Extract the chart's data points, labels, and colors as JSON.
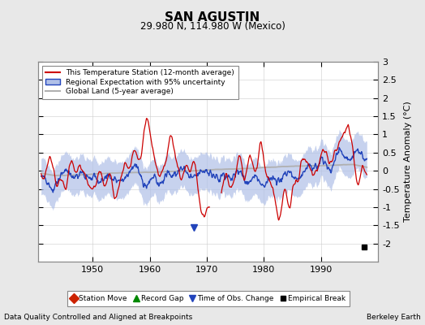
{
  "title": "SAN AGUSTIN",
  "subtitle": "29.980 N, 114.980 W (Mexico)",
  "xlabel_note": "Data Quality Controlled and Aligned at Breakpoints",
  "credit": "Berkeley Earth",
  "ylabel": "Temperature Anomaly (°C)",
  "xlim": [
    1940.5,
    2000
  ],
  "ylim": [
    -2.5,
    3.0
  ],
  "yticks": [
    -2,
    -1.5,
    -1,
    -0.5,
    0,
    0.5,
    1,
    1.5,
    2,
    2.5,
    3
  ],
  "xticks": [
    1950,
    1960,
    1970,
    1980,
    1990
  ],
  "bg_color": "#e8e8e8",
  "plot_bg_color": "#ffffff",
  "grid_color": "#cccccc",
  "legend_labels": [
    "This Temperature Station (12-month average)",
    "Regional Expectation with 95% uncertainty",
    "Global Land (5-year average)"
  ],
  "red_color": "#cc0000",
  "blue_color": "#2244bb",
  "blue_fill_color": "#b0c0e8",
  "gray_color": "#b0b0b0",
  "empirical_break_year": 1997.5,
  "empirical_break_value": -2.1,
  "time_obs_change_year": 1967.8,
  "time_obs_change_value": -1.55
}
